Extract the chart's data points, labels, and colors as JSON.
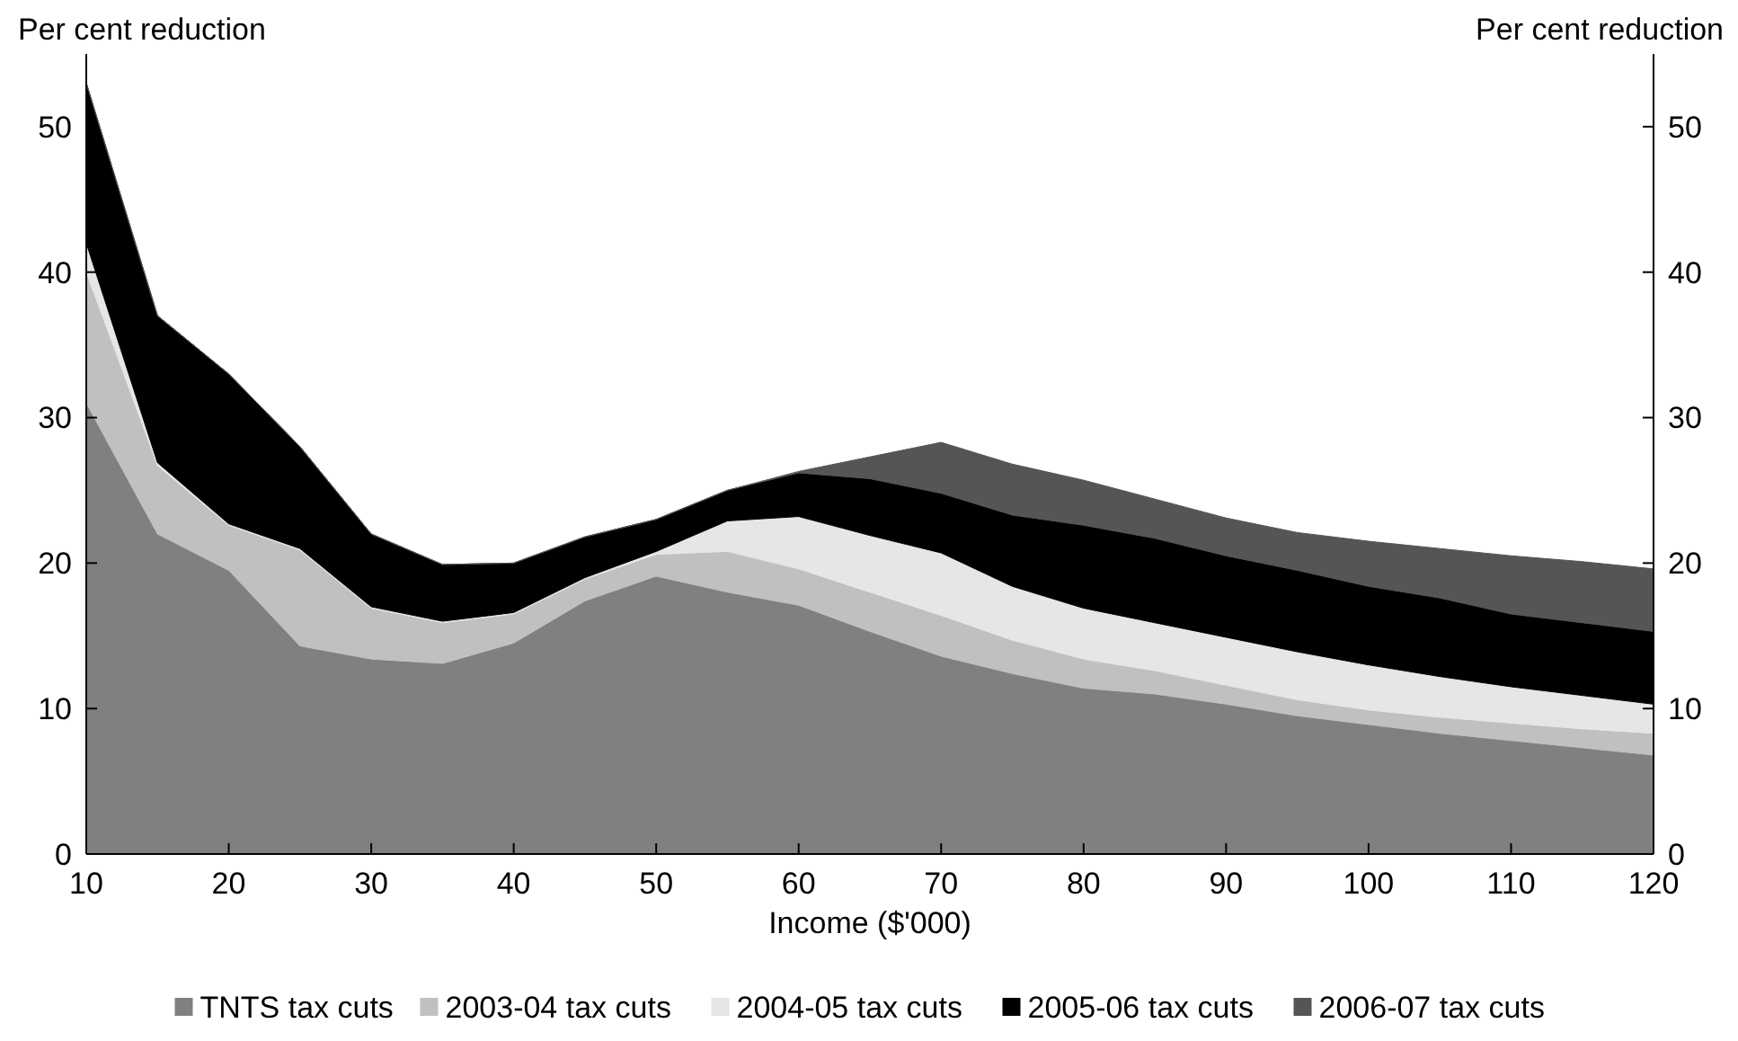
{
  "chart_data": {
    "type": "area",
    "stacked": true,
    "xlabel": "Income ($'000)",
    "ylabel": "Per cent reduction",
    "y2label": "Per cent reduction",
    "x": [
      10,
      15,
      20,
      25,
      30,
      35,
      40,
      45,
      50,
      55,
      60,
      65,
      70,
      75,
      80,
      85,
      90,
      95,
      100,
      105,
      110,
      115,
      120
    ],
    "xlim": [
      10,
      120
    ],
    "xticks": [
      10,
      20,
      30,
      40,
      50,
      60,
      70,
      80,
      90,
      100,
      110,
      120
    ],
    "ylim": [
      0,
      55
    ],
    "yticks": [
      0,
      10,
      20,
      30,
      40,
      50
    ],
    "y2lim": [
      0,
      55
    ],
    "y2ticks": [
      0,
      10,
      20,
      30,
      40,
      50
    ],
    "grid": false,
    "legend": "bottom",
    "series": [
      {
        "name": "TNTS tax cuts",
        "color": "#808080",
        "values": [
          31,
          22,
          19.5,
          14.3,
          13.4,
          13.1,
          14.5,
          17.4,
          19.1,
          18,
          17.1,
          15.3,
          13.6,
          12.4,
          11.4,
          11,
          10.3,
          9.5,
          8.9,
          8.3,
          7.8,
          7.3,
          6.8
        ]
      },
      {
        "name": "2003-04 tax cuts",
        "color": "#c0c0c0",
        "values": [
          9,
          4.7,
          3.1,
          6.6,
          3.5,
          2.8,
          2,
          1.5,
          1.5,
          2.8,
          2.5,
          2.7,
          2.8,
          2.3,
          2,
          1.6,
          1.3,
          1.1,
          1,
          1.1,
          1.2,
          1.3,
          1.5
        ]
      },
      {
        "name": "2004-05 tax cuts",
        "color": "#e6e6e6",
        "values": [
          2,
          0.2,
          0.1,
          0.1,
          0.1,
          0.1,
          0.1,
          0.1,
          0.2,
          2.1,
          3.6,
          3.9,
          4.3,
          3.7,
          3.5,
          3.3,
          3.3,
          3.3,
          3.1,
          2.8,
          2.5,
          2.3,
          2
        ]
      },
      {
        "name": "2005-06 tax cuts",
        "color": "#000000",
        "values": [
          11,
          10.1,
          10.3,
          7,
          5,
          3.9,
          3.4,
          2.8,
          2.2,
          2.1,
          3,
          3.9,
          4.1,
          4.9,
          5.7,
          5.8,
          5.6,
          5.6,
          5.4,
          5.4,
          5,
          5,
          5
        ]
      },
      {
        "name": "2006-07 tax cuts",
        "color": "#555555",
        "values": [
          0,
          0,
          0,
          0,
          0,
          0,
          0,
          0,
          0,
          0,
          0.1,
          1.5,
          3.5,
          3.5,
          3.1,
          2.7,
          2.6,
          2.6,
          3.1,
          3.4,
          4,
          4.2,
          4.3
        ]
      }
    ]
  }
}
